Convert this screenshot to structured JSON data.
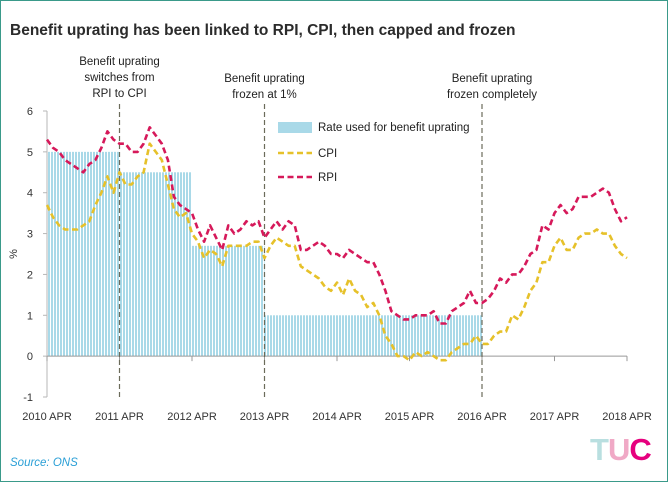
{
  "title": "Benefit uprating has been linked to RPI, CPI, then capped and frozen",
  "source": "Source: ONS",
  "logo": {
    "text": "TUC",
    "colors": [
      "#b9dfe0",
      "#f0a9c6",
      "#e6007e"
    ]
  },
  "colors": {
    "benefit_rate": "#a9d9e8",
    "cpi": "#e6c12a",
    "rpi": "#d6195a",
    "annotation": "#6b6b5a",
    "grid_axis": "#b7b7b7"
  },
  "chart_data": {
    "type": "line",
    "title": "Benefit uprating has been linked to RPI, CPI, then capped and frozen",
    "xlabel": "",
    "ylabel": "%",
    "xlim": [
      2010.25,
      2018.25
    ],
    "ylim": [
      -1,
      6
    ],
    "yticks": [
      -1,
      0,
      1,
      2,
      3,
      4,
      5,
      6
    ],
    "xticks": [
      {
        "x": 2010.25,
        "label": "2010 APR"
      },
      {
        "x": 2011.25,
        "label": "2011 APR"
      },
      {
        "x": 2012.25,
        "label": "2012 APR"
      },
      {
        "x": 2013.25,
        "label": "2013 APR"
      },
      {
        "x": 2014.25,
        "label": "2014 APR"
      },
      {
        "x": 2015.25,
        "label": "2015 APR"
      },
      {
        "x": 2016.25,
        "label": "2016 APR"
      },
      {
        "x": 2017.25,
        "label": "2017 APR"
      },
      {
        "x": 2018.25,
        "label": "2018 APR"
      }
    ],
    "legend_position": "top-right",
    "legend": [
      {
        "label": "Rate used for benefit uprating",
        "style": "bar"
      },
      {
        "label": "CPI",
        "style": "dashed"
      },
      {
        "label": "RPI",
        "style": "dashed"
      }
    ],
    "bars": {
      "name": "Rate used for benefit uprating",
      "segments": [
        {
          "start": 2010.25,
          "end": 2011.25,
          "value": 5.0
        },
        {
          "start": 2011.25,
          "end": 2012.25,
          "value": 4.5
        },
        {
          "start": 2012.25,
          "end": 2013.25,
          "value": 2.7
        },
        {
          "start": 2013.25,
          "end": 2016.25,
          "value": 1.0
        }
      ]
    },
    "series": [
      {
        "name": "CPI",
        "points": [
          [
            2010.25,
            3.7
          ],
          [
            2010.333,
            3.4
          ],
          [
            2010.417,
            3.2
          ],
          [
            2010.5,
            3.1
          ],
          [
            2010.583,
            3.1
          ],
          [
            2010.667,
            3.1
          ],
          [
            2010.75,
            3.2
          ],
          [
            2010.833,
            3.3
          ],
          [
            2010.917,
            3.7
          ],
          [
            2011.0,
            4.0
          ],
          [
            2011.083,
            4.4
          ],
          [
            2011.167,
            4.0
          ],
          [
            2011.25,
            4.5
          ],
          [
            2011.333,
            4.2
          ],
          [
            2011.417,
            4.2
          ],
          [
            2011.5,
            4.4
          ],
          [
            2011.583,
            4.5
          ],
          [
            2011.667,
            5.2
          ],
          [
            2011.75,
            5.0
          ],
          [
            2011.833,
            4.8
          ],
          [
            2011.917,
            4.2
          ],
          [
            2012.0,
            3.6
          ],
          [
            2012.083,
            3.4
          ],
          [
            2012.167,
            3.5
          ],
          [
            2012.25,
            3.0
          ],
          [
            2012.333,
            2.8
          ],
          [
            2012.417,
            2.4
          ],
          [
            2012.5,
            2.6
          ],
          [
            2012.583,
            2.5
          ],
          [
            2012.667,
            2.2
          ],
          [
            2012.75,
            2.7
          ],
          [
            2012.833,
            2.7
          ],
          [
            2012.917,
            2.7
          ],
          [
            2013.0,
            2.7
          ],
          [
            2013.083,
            2.8
          ],
          [
            2013.167,
            2.8
          ],
          [
            2013.25,
            2.4
          ],
          [
            2013.333,
            2.7
          ],
          [
            2013.417,
            2.9
          ],
          [
            2013.5,
            2.8
          ],
          [
            2013.583,
            2.7
          ],
          [
            2013.667,
            2.7
          ],
          [
            2013.75,
            2.2
          ],
          [
            2013.833,
            2.1
          ],
          [
            2013.917,
            2.0
          ],
          [
            2014.0,
            1.9
          ],
          [
            2014.083,
            1.7
          ],
          [
            2014.167,
            1.6
          ],
          [
            2014.25,
            1.8
          ],
          [
            2014.333,
            1.5
          ],
          [
            2014.417,
            1.9
          ],
          [
            2014.5,
            1.6
          ],
          [
            2014.583,
            1.5
          ],
          [
            2014.667,
            1.2
          ],
          [
            2014.75,
            1.3
          ],
          [
            2014.833,
            1.0
          ],
          [
            2014.917,
            0.5
          ],
          [
            2015.0,
            0.3
          ],
          [
            2015.083,
            0.0
          ],
          [
            2015.167,
            0.0
          ],
          [
            2015.25,
            -0.1
          ],
          [
            2015.333,
            0.1
          ],
          [
            2015.417,
            0.0
          ],
          [
            2015.5,
            0.1
          ],
          [
            2015.583,
            0.0
          ],
          [
            2015.667,
            -0.1
          ],
          [
            2015.75,
            -0.1
          ],
          [
            2015.833,
            0.1
          ],
          [
            2015.917,
            0.2
          ],
          [
            2016.0,
            0.3
          ],
          [
            2016.083,
            0.3
          ],
          [
            2016.167,
            0.5
          ],
          [
            2016.25,
            0.3
          ],
          [
            2016.333,
            0.3
          ],
          [
            2016.417,
            0.5
          ],
          [
            2016.5,
            0.6
          ],
          [
            2016.583,
            0.6
          ],
          [
            2016.667,
            1.0
          ],
          [
            2016.75,
            0.9
          ],
          [
            2016.833,
            1.2
          ],
          [
            2016.917,
            1.6
          ],
          [
            2017.0,
            1.8
          ],
          [
            2017.083,
            2.3
          ],
          [
            2017.167,
            2.3
          ],
          [
            2017.25,
            2.7
          ],
          [
            2017.333,
            2.9
          ],
          [
            2017.417,
            2.6
          ],
          [
            2017.5,
            2.6
          ],
          [
            2017.583,
            2.9
          ],
          [
            2017.667,
            3.0
          ],
          [
            2017.75,
            3.0
          ],
          [
            2017.833,
            3.1
          ],
          [
            2017.917,
            3.0
          ],
          [
            2018.0,
            3.0
          ],
          [
            2018.083,
            2.7
          ],
          [
            2018.167,
            2.5
          ],
          [
            2018.25,
            2.4
          ]
        ]
      },
      {
        "name": "RPI",
        "points": [
          [
            2010.25,
            5.3
          ],
          [
            2010.333,
            5.1
          ],
          [
            2010.417,
            5.0
          ],
          [
            2010.5,
            4.8
          ],
          [
            2010.583,
            4.7
          ],
          [
            2010.667,
            4.6
          ],
          [
            2010.75,
            4.5
          ],
          [
            2010.833,
            4.7
          ],
          [
            2010.917,
            4.8
          ],
          [
            2011.0,
            5.1
          ],
          [
            2011.083,
            5.5
          ],
          [
            2011.167,
            5.3
          ],
          [
            2011.25,
            5.2
          ],
          [
            2011.333,
            5.2
          ],
          [
            2011.417,
            5.0
          ],
          [
            2011.5,
            5.0
          ],
          [
            2011.583,
            5.2
          ],
          [
            2011.667,
            5.6
          ],
          [
            2011.75,
            5.4
          ],
          [
            2011.833,
            5.2
          ],
          [
            2011.917,
            4.8
          ],
          [
            2012.0,
            3.9
          ],
          [
            2012.083,
            3.7
          ],
          [
            2012.167,
            3.6
          ],
          [
            2012.25,
            3.5
          ],
          [
            2012.333,
            3.1
          ],
          [
            2012.417,
            2.8
          ],
          [
            2012.5,
            3.2
          ],
          [
            2012.583,
            2.9
          ],
          [
            2012.667,
            2.6
          ],
          [
            2012.75,
            3.2
          ],
          [
            2012.833,
            3.0
          ],
          [
            2012.917,
            3.1
          ],
          [
            2013.0,
            3.3
          ],
          [
            2013.083,
            3.2
          ],
          [
            2013.167,
            3.3
          ],
          [
            2013.25,
            2.9
          ],
          [
            2013.333,
            3.1
          ],
          [
            2013.417,
            3.3
          ],
          [
            2013.5,
            3.1
          ],
          [
            2013.583,
            3.3
          ],
          [
            2013.667,
            3.2
          ],
          [
            2013.75,
            2.6
          ],
          [
            2013.833,
            2.6
          ],
          [
            2013.917,
            2.7
          ],
          [
            2014.0,
            2.8
          ],
          [
            2014.083,
            2.7
          ],
          [
            2014.167,
            2.5
          ],
          [
            2014.25,
            2.5
          ],
          [
            2014.333,
            2.4
          ],
          [
            2014.417,
            2.6
          ],
          [
            2014.5,
            2.5
          ],
          [
            2014.583,
            2.4
          ],
          [
            2014.667,
            2.3
          ],
          [
            2014.75,
            2.3
          ],
          [
            2014.833,
            2.0
          ],
          [
            2014.917,
            1.6
          ],
          [
            2015.0,
            1.1
          ],
          [
            2015.083,
            1.0
          ],
          [
            2015.167,
            0.9
          ],
          [
            2015.25,
            0.9
          ],
          [
            2015.333,
            1.0
          ],
          [
            2015.417,
            1.0
          ],
          [
            2015.5,
            1.0
          ],
          [
            2015.583,
            1.1
          ],
          [
            2015.667,
            0.8
          ],
          [
            2015.75,
            0.8
          ],
          [
            2015.833,
            1.1
          ],
          [
            2015.917,
            1.2
          ],
          [
            2016.0,
            1.3
          ],
          [
            2016.083,
            1.6
          ],
          [
            2016.167,
            1.3
          ],
          [
            2016.25,
            1.3
          ],
          [
            2016.333,
            1.4
          ],
          [
            2016.417,
            1.6
          ],
          [
            2016.5,
            1.9
          ],
          [
            2016.583,
            1.8
          ],
          [
            2016.667,
            2.0
          ],
          [
            2016.75,
            2.0
          ],
          [
            2016.833,
            2.2
          ],
          [
            2016.917,
            2.5
          ],
          [
            2017.0,
            2.6
          ],
          [
            2017.083,
            3.2
          ],
          [
            2017.167,
            3.1
          ],
          [
            2017.25,
            3.5
          ],
          [
            2017.333,
            3.7
          ],
          [
            2017.417,
            3.5
          ],
          [
            2017.5,
            3.6
          ],
          [
            2017.583,
            3.9
          ],
          [
            2017.667,
            3.9
          ],
          [
            2017.75,
            3.9
          ],
          [
            2017.833,
            4.0
          ],
          [
            2017.917,
            4.1
          ],
          [
            2018.0,
            4.0
          ],
          [
            2018.083,
            3.6
          ],
          [
            2018.167,
            3.3
          ],
          [
            2018.25,
            3.4
          ]
        ]
      }
    ],
    "annotations": [
      {
        "x": 2011.25,
        "lines": [
          "Benefit uprating",
          "switches from",
          "RPI to CPI"
        ]
      },
      {
        "x": 2013.25,
        "lines": [
          "Benefit uprating",
          "frozen at 1%"
        ]
      },
      {
        "x": 2016.25,
        "lines": [
          "Benefit uprating",
          "frozen completely"
        ]
      }
    ]
  }
}
